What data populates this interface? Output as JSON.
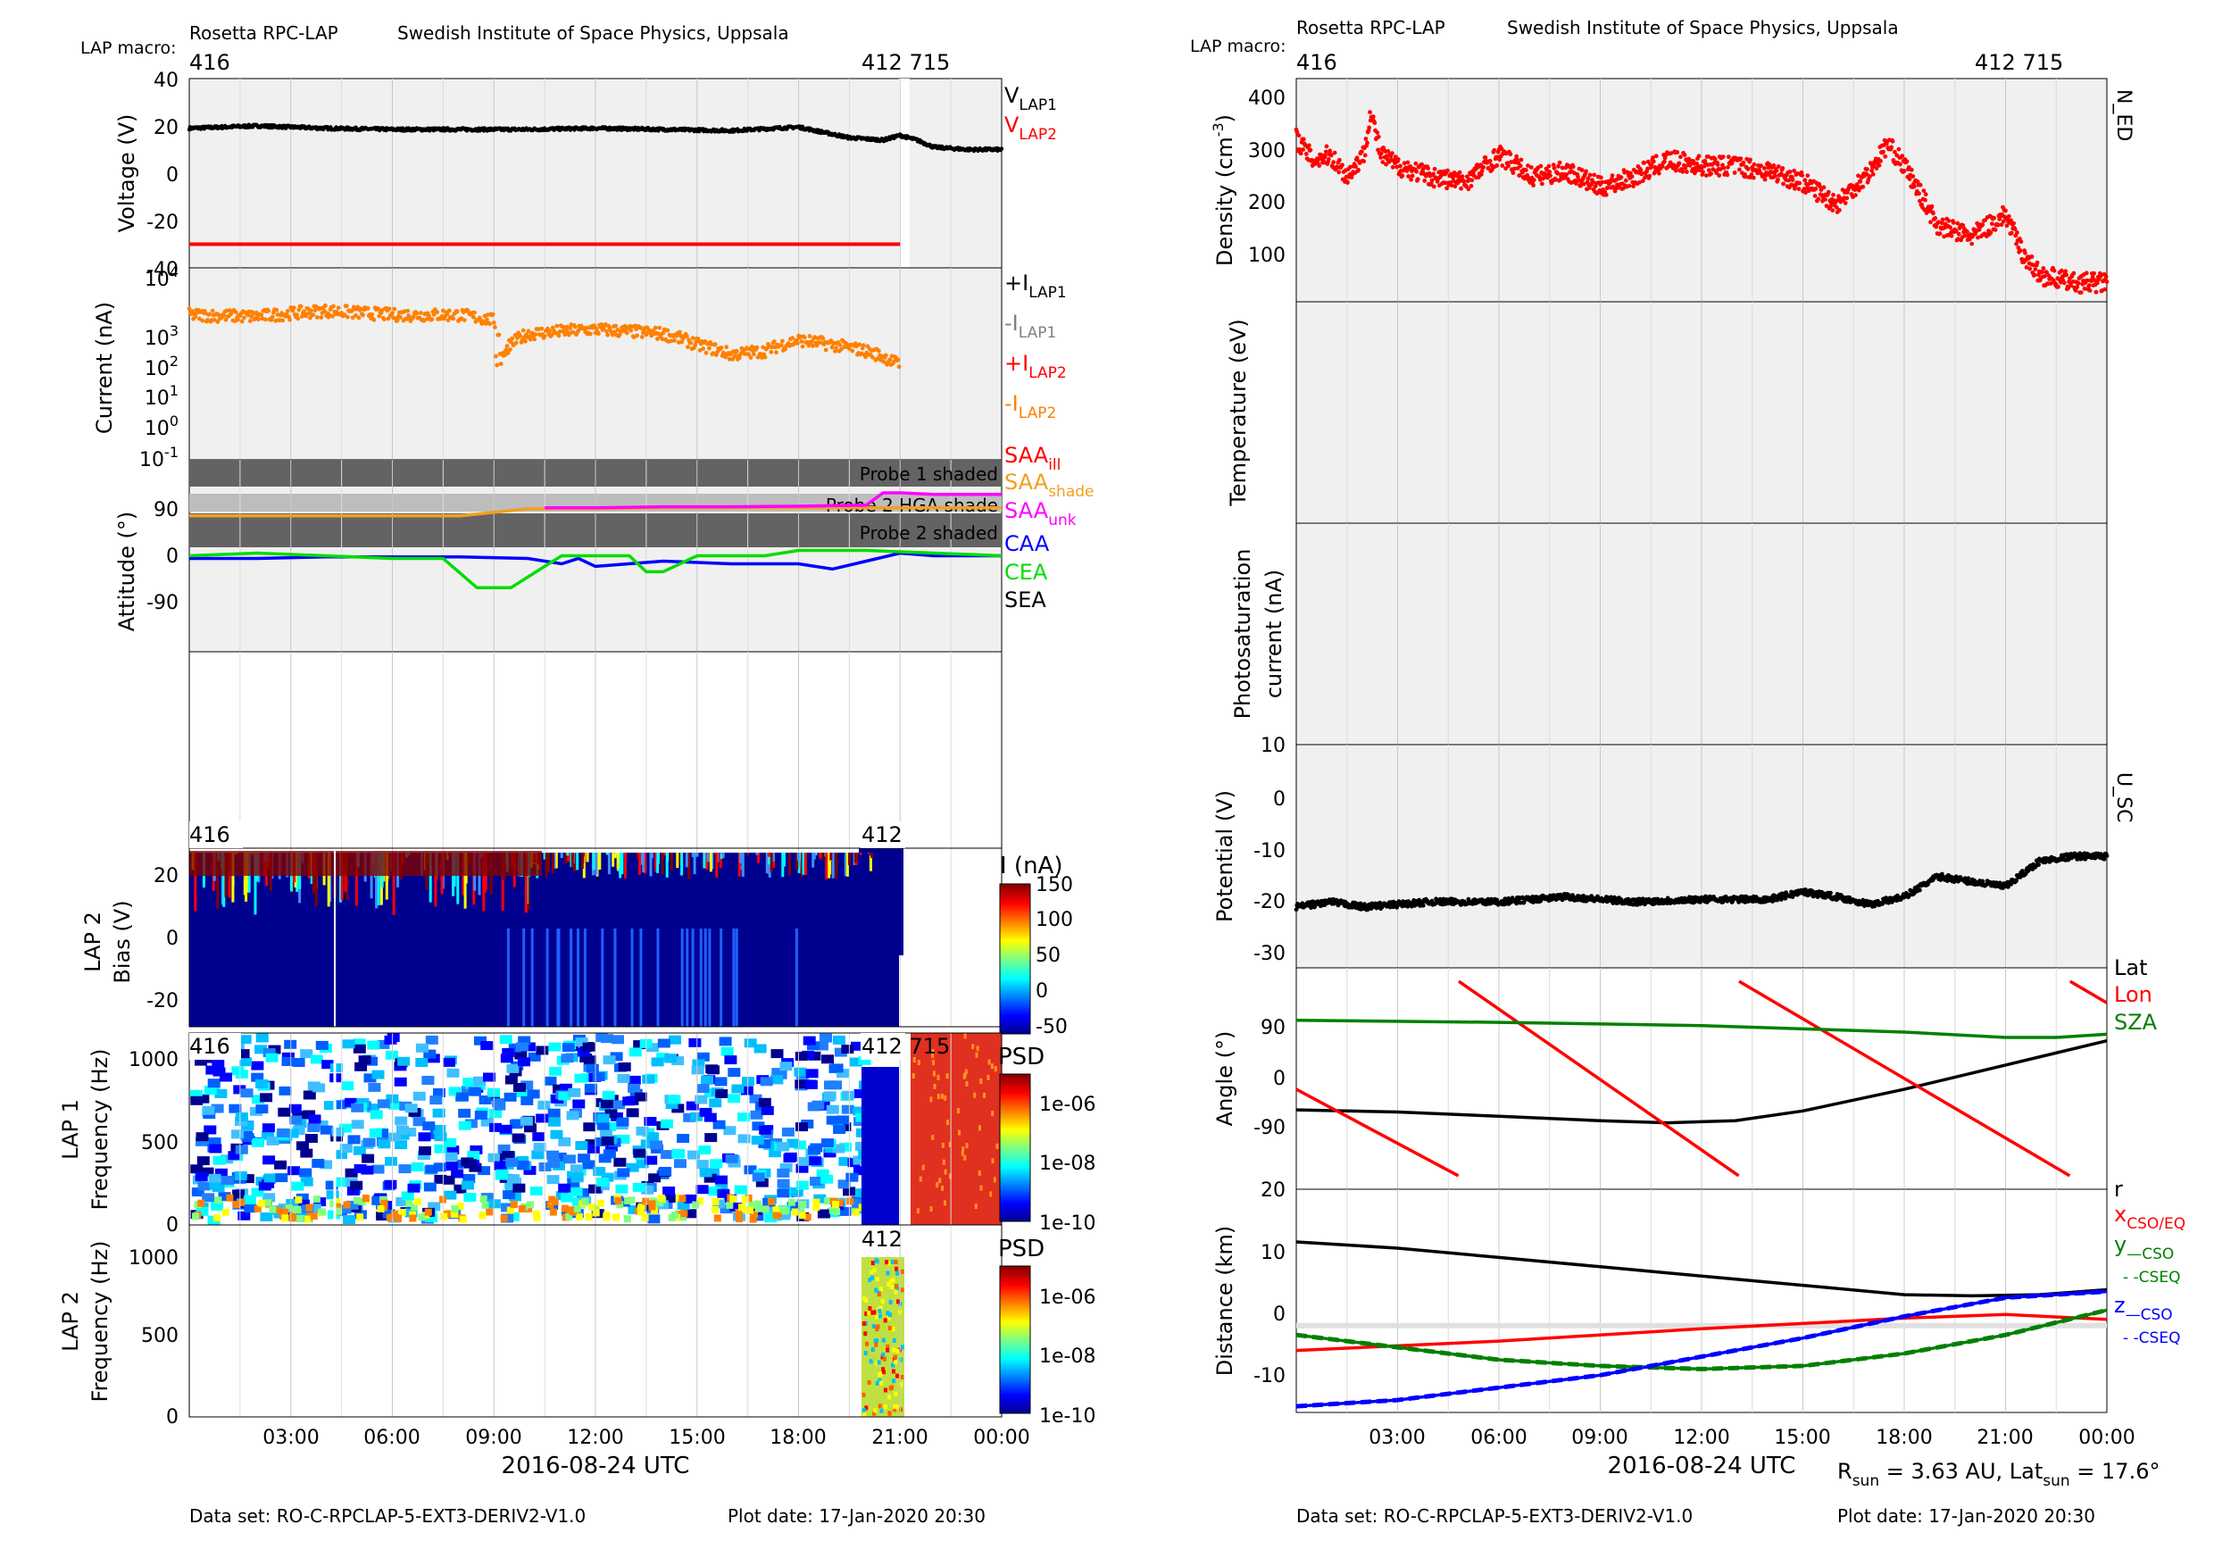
{
  "left": {
    "header": {
      "instrument": "Rosetta RPC-LAP",
      "institute": "Swedish Institute of Space Physics, Uppsala",
      "macro_label": "LAP macro:",
      "macro_start": "416",
      "macro_end": "412 715"
    },
    "footer": {
      "dataset": "Data set: RO-C-RPCLAP-5-EXT3-DERIV2-V1.0",
      "plot_date": "Plot date: 17-Jan-2020 20:30"
    },
    "xlabel": "2016-08-24 UTC",
    "xticks": [
      "03:00",
      "06:00",
      "09:00",
      "12:00",
      "15:00",
      "18:00",
      "21:00",
      "00:00"
    ]
  },
  "right": {
    "header": {
      "instrument": "Rosetta RPC-LAP",
      "institute": "Swedish Institute of Space Physics, Uppsala",
      "macro_label": "LAP macro:",
      "macro_start": "416",
      "macro_end": "412 715"
    },
    "footer": {
      "dataset": "Data set: RO-C-RPCLAP-5-EXT3-DERIV2-V1.0",
      "plot_date": "Plot date: 17-Jan-2020 20:30"
    },
    "xlabel": "2016-08-24 UTC",
    "xticks": [
      "03:00",
      "06:00",
      "09:00",
      "12:00",
      "15:00",
      "18:00",
      "21:00",
      "00:00"
    ],
    "rsun_note": "R_sun = 3.63 AU, Lat_sun = 17.6°"
  },
  "chart_data": [
    {
      "id": "voltage",
      "type": "line",
      "ylabel": "Voltage (V)",
      "ylim": [
        -40,
        40
      ],
      "yticks": [
        "40",
        "20",
        "0",
        "-20",
        "-40"
      ],
      "legend": [
        "V_LAP1",
        "V_LAP2"
      ],
      "series": [
        {
          "name": "V_LAP1",
          "color": "#000000",
          "x": [
            0,
            2,
            4,
            6,
            8,
            10,
            12,
            14,
            16,
            18,
            19.5,
            20.5,
            21,
            21.5,
            22,
            23,
            24
          ],
          "y": [
            19,
            20,
            19,
            18.5,
            18.5,
            18.5,
            19,
            18.5,
            18,
            19.5,
            15,
            14,
            16,
            14,
            11,
            10,
            10
          ]
        },
        {
          "name": "V_LAP2",
          "color": "#ff0000",
          "x": [
            0,
            21
          ],
          "y": [
            -30,
            -30
          ]
        }
      ]
    },
    {
      "id": "current",
      "type": "scatter",
      "ylabel": "Current (nA)",
      "log_y": true,
      "yticks": [
        "10^4",
        "10^3",
        "10^2",
        "10^1",
        "10^0",
        "10^-1"
      ],
      "legend": [
        "+I_LAP1",
        "-I_LAP1",
        "+I_LAP2",
        "-I_LAP2"
      ],
      "series": [
        {
          "name": "-I_LAP2",
          "color": "#ff8000",
          "x": [
            0,
            2,
            4,
            6,
            8,
            9,
            9.2,
            10,
            12,
            14,
            15,
            16,
            17,
            18,
            19,
            20,
            21
          ],
          "y": [
            1000,
            900,
            1300,
            1000,
            1000,
            700,
            60,
            300,
            400,
            300,
            150,
            80,
            100,
            200,
            150,
            100,
            40
          ]
        }
      ]
    },
    {
      "id": "attitude",
      "type": "line",
      "ylabel": "Attitude (°)",
      "ylim": [
        -180,
        180
      ],
      "yticks": [
        "90",
        "0",
        "-90"
      ],
      "legend": [
        "SAA_ill",
        "SAA_shade",
        "SAA_unk",
        "CAA",
        "CEA",
        "SEA"
      ],
      "shade_labels": [
        "Probe 1 shaded",
        "Probe 2 HGA shade",
        "Probe 2 shaded"
      ],
      "series": [
        {
          "name": "SAA_shade",
          "color": "#f0a020",
          "x": [
            0,
            4,
            8,
            10,
            12,
            14,
            16,
            18,
            20,
            22,
            24
          ],
          "y": [
            75,
            75,
            75,
            88,
            88,
            90,
            90,
            90,
            90,
            90,
            90
          ]
        },
        {
          "name": "SAA_unk",
          "color": "#ff00ff",
          "x": [
            10.5,
            12,
            14,
            16,
            18,
            20,
            20.5,
            21,
            22,
            24
          ],
          "y": [
            90,
            90,
            92,
            92,
            93,
            95,
            118,
            118,
            115,
            115
          ]
        },
        {
          "name": "CAA",
          "color": "#0000ff",
          "x": [
            0,
            2,
            4,
            6,
            8,
            10,
            11,
            11.5,
            12,
            14,
            16,
            18,
            19,
            20,
            21,
            22,
            24
          ],
          "y": [
            -5,
            -5,
            -2,
            -2,
            -2,
            -5,
            -15,
            -5,
            -20,
            -10,
            -15,
            -15,
            -25,
            -10,
            5,
            0,
            0
          ]
        },
        {
          "name": "CEA",
          "color": "#00dd00",
          "x": [
            0,
            2,
            4,
            6,
            7.5,
            8.5,
            9.5,
            10.5,
            11,
            12,
            13,
            13.5,
            14,
            15,
            17,
            18,
            20,
            22,
            24
          ],
          "y": [
            0,
            5,
            0,
            -5,
            -5,
            -60,
            -60,
            -20,
            0,
            0,
            0,
            -30,
            -30,
            0,
            0,
            10,
            10,
            5,
            0
          ]
        }
      ]
    },
    {
      "id": "lap2_bias",
      "type": "heatmap",
      "ylabel_1": "LAP 2",
      "ylabel_2": "Bias (V)",
      "ylim": [
        -28,
        28
      ],
      "yticks": [
        "20",
        "0",
        "-20"
      ],
      "macro_start": "416",
      "macro_end": "412",
      "colorbar": {
        "label": "I (nA)",
        "ticks": [
          "150",
          "100",
          "50",
          "0",
          "-50"
        ],
        "range": [
          -50,
          150
        ]
      }
    },
    {
      "id": "lap1_freq",
      "type": "heatmap",
      "ylabel_1": "LAP 1",
      "ylabel_2": "Frequency (Hz)",
      "ylim": [
        0,
        1150
      ],
      "yticks": [
        "1000",
        "500",
        "0"
      ],
      "macro_start": "416",
      "macro_end": "412 715",
      "colorbar": {
        "label": "PSD",
        "ticks": [
          "1e-06",
          "1e-08",
          "1e-10"
        ]
      }
    },
    {
      "id": "lap2_freq",
      "type": "heatmap",
      "ylabel_1": "LAP 2",
      "ylabel_2": "Frequency (Hz)",
      "ylim": [
        0,
        1150
      ],
      "yticks": [
        "1000",
        "500",
        "0"
      ],
      "macro_end": "412",
      "colorbar": {
        "label": "PSD",
        "ticks": [
          "1e-06",
          "1e-08",
          "1e-10"
        ]
      }
    },
    {
      "id": "density",
      "type": "scatter",
      "ylabel": "Density (cm⁻³)",
      "ylim": [
        30,
        440
      ],
      "yticks": [
        "400",
        "300",
        "200",
        "100"
      ],
      "tag": "N_ED",
      "series": [
        {
          "color": "#ff0000",
          "x": [
            0,
            0.5,
            1,
            1.5,
            2,
            2.2,
            2.5,
            3,
            4,
            5,
            6,
            7,
            8,
            9,
            10,
            11,
            12,
            13,
            14,
            15,
            16,
            17,
            17.5,
            18,
            19,
            20,
            21,
            21.5,
            22,
            23,
            24
          ],
          "y": [
            330,
            290,
            300,
            260,
            300,
            380,
            300,
            280,
            260,
            250,
            300,
            260,
            270,
            240,
            260,
            290,
            280,
            280,
            270,
            250,
            210,
            270,
            320,
            280,
            170,
            150,
            190,
            120,
            80,
            65,
            65
          ]
        }
      ]
    },
    {
      "id": "temperature",
      "type": "line",
      "ylabel": "Temperature (eV)",
      "series": []
    },
    {
      "id": "photosat",
      "type": "line",
      "ylabel_1": "Photosaturation",
      "ylabel_2": "current (nA)",
      "yticks": [
        "10"
      ],
      "series": []
    },
    {
      "id": "potential",
      "type": "line",
      "ylabel": "Potential (V)",
      "ylim": [
        -32,
        12
      ],
      "yticks": [
        "0",
        "-10",
        "-20",
        "-30"
      ],
      "tag": "U_SC",
      "series": [
        {
          "color": "#000000",
          "x": [
            0,
            1,
            2,
            4,
            6,
            8,
            10,
            12,
            14,
            15,
            16,
            17,
            18,
            19,
            20,
            21,
            22,
            23,
            24
          ],
          "y": [
            -20,
            -19,
            -20,
            -19,
            -19,
            -18,
            -19,
            -18.5,
            -18.5,
            -17,
            -18,
            -19.5,
            -18,
            -14,
            -15,
            -16,
            -11,
            -10,
            -10
          ]
        }
      ]
    },
    {
      "id": "angle",
      "type": "line",
      "ylabel": "Angle (°)",
      "ylim": [
        -205,
        205
      ],
      "yticks": [
        "90",
        "0",
        "-90"
      ],
      "legend": [
        "Lat",
        "Lon",
        "SZA"
      ],
      "series": [
        {
          "name": "Lat",
          "color": "#000000",
          "x": [
            0,
            3,
            6,
            9,
            11,
            13,
            15,
            18,
            21,
            24
          ],
          "y": [
            -58,
            -62,
            -70,
            -78,
            -82,
            -78,
            -60,
            -20,
            25,
            70
          ]
        },
        {
          "name": "Lon",
          "color": "#ff0000",
          "x": [
            0,
            4.8,
            4.81,
            13.1,
            13.11,
            22.9,
            22.91,
            24
          ],
          "y": [
            -20,
            -180,
            180,
            -180,
            180,
            -180,
            180,
            140
          ]
        },
        {
          "name": "SZA",
          "color": "#008000",
          "x": [
            0,
            6,
            12,
            15,
            18,
            21,
            22.5,
            24
          ],
          "y": [
            108,
            104,
            98,
            92,
            86,
            76,
            76,
            82
          ]
        }
      ]
    },
    {
      "id": "distance",
      "type": "line",
      "ylabel": "Distance (km)",
      "ylim": [
        -14,
        22
      ],
      "yticks": [
        "20",
        "10",
        "0",
        "-10"
      ],
      "legend": [
        "r",
        "x_CSO/EQ",
        "y_CSO",
        "--CSEQ",
        "z_CSO",
        "--CSEQ"
      ],
      "series": [
        {
          "name": "r",
          "color": "#000000",
          "x": [
            0,
            3,
            6,
            9,
            12,
            15,
            18,
            20,
            22,
            24
          ],
          "y": [
            13.5,
            12.5,
            11,
            9.5,
            8,
            6.5,
            5,
            4.8,
            5,
            5.8
          ]
        },
        {
          "name": "x",
          "color": "#ff0000",
          "x": [
            0,
            6,
            12,
            18,
            21,
            24
          ],
          "y": [
            -4,
            -2.5,
            -0.5,
            1.2,
            1.8,
            1
          ]
        },
        {
          "name": "y",
          "color": "#008000",
          "x": [
            0,
            3,
            6,
            9,
            12,
            15,
            18,
            21,
            24
          ],
          "y": [
            -1.5,
            -3.5,
            -5.5,
            -6.5,
            -7,
            -6.5,
            -4.5,
            -1.5,
            2.5
          ]
        },
        {
          "name": "z",
          "color": "#0000ff",
          "x": [
            0,
            3,
            6,
            9,
            12,
            15,
            18,
            21,
            24
          ],
          "y": [
            -13,
            -12,
            -10,
            -8,
            -5,
            -2,
            1.5,
            4.5,
            5.5
          ]
        }
      ]
    }
  ]
}
